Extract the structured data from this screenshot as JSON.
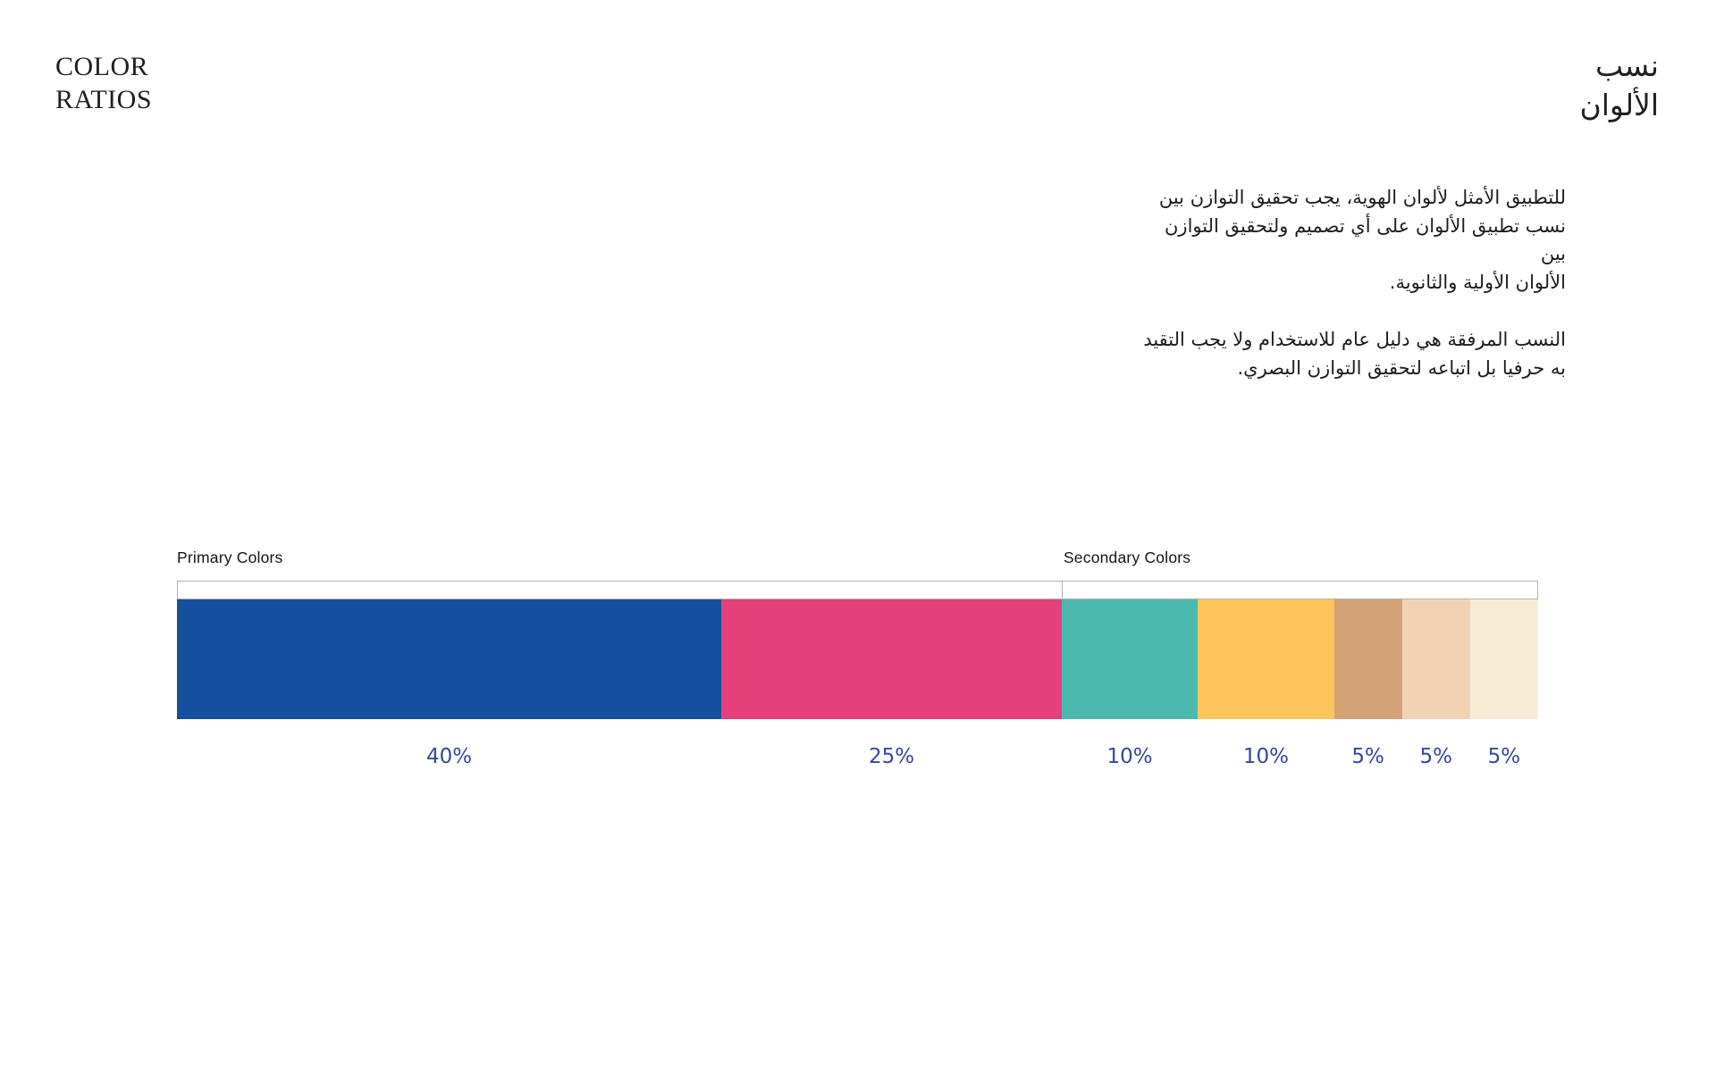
{
  "header": {
    "title_en": "COLOR\nRATIOS",
    "title_ar": "نسب\nالألوان"
  },
  "intro": {
    "paragraph_1": "للتطبيق الأمثل لألوان الهوية، يجب تحقيق التوازن بين\nنسب تطبيق الألوان على أي تصميم ولتحقيق التوازن بين\nالألوان الأولية والثانوية.",
    "paragraph_2": "النسب المرفقة هي دليل عام للاستخدام ولا يجب التقيد\nبه حرفيا بل اتباعه لتحقيق التوازن البصري."
  },
  "chart_data": {
    "type": "bar",
    "title": "Color Ratios",
    "orientation": "horizontal-proportional",
    "value_suffix": "%",
    "label_color": "#35479e",
    "groups": [
      {
        "label": "Primary Colors",
        "total_percent": 65
      },
      {
        "label": "Secondary Colors",
        "total_percent": 35
      }
    ],
    "segments": [
      {
        "name": "blue",
        "group": "Primary Colors",
        "color": "#15509e",
        "percent": 40
      },
      {
        "name": "pink",
        "group": "Primary Colors",
        "color": "#e4417a",
        "percent": 25
      },
      {
        "name": "teal",
        "group": "Secondary Colors",
        "color": "#4bb9ad",
        "percent": 10
      },
      {
        "name": "yellow",
        "group": "Secondary Colors",
        "color": "#fcc45b",
        "percent": 10
      },
      {
        "name": "tan",
        "group": "Secondary Colors",
        "color": "#d3a377",
        "percent": 5
      },
      {
        "name": "peach",
        "group": "Secondary Colors",
        "color": "#f2d2b5",
        "percent": 5
      },
      {
        "name": "cream",
        "group": "Secondary Colors",
        "color": "#f8ebd6",
        "percent": 5
      }
    ]
  }
}
